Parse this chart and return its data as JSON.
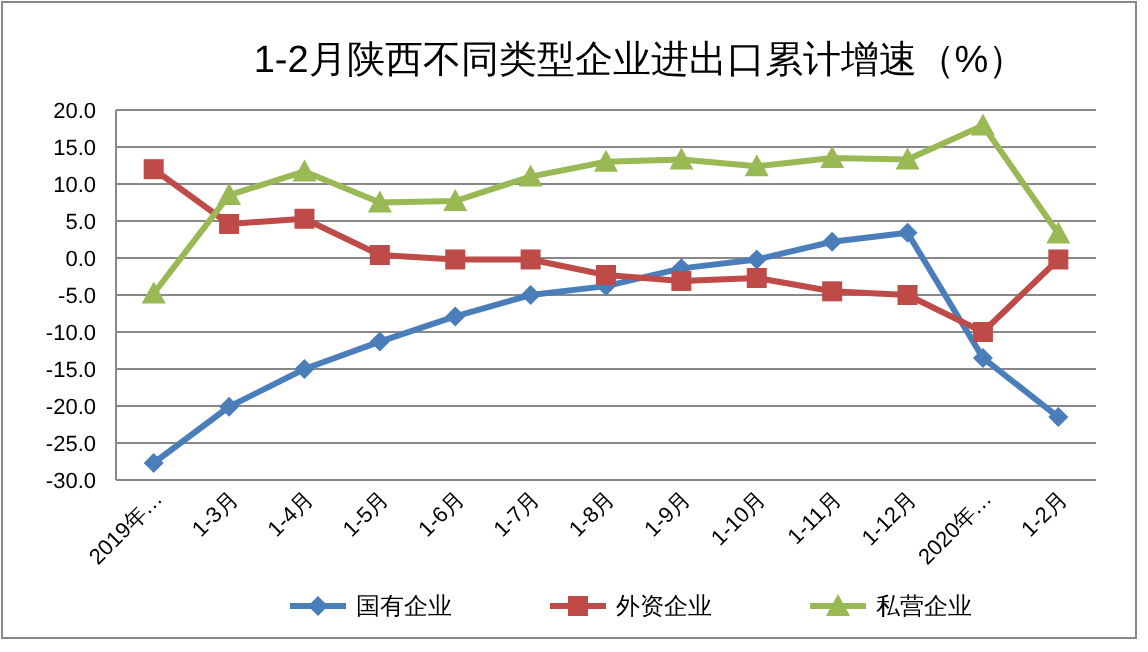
{
  "chart_data": {
    "type": "line",
    "title": "1-2月陕西不同类型企业进出口累计增速（%）",
    "categories": [
      "2019年…",
      "1-3月",
      "1-4月",
      "1-5月",
      "1-6月",
      "1-7月",
      "1-8月",
      "1-9月",
      "1-10月",
      "1-11月",
      "1-12月",
      "2020年…",
      "1-2月"
    ],
    "series": [
      {
        "name": "国有企业",
        "color": "#4a7ebb",
        "marker": "diamond",
        "values": [
          -27.7,
          -20.1,
          -15.0,
          -11.3,
          -7.9,
          -5.0,
          -3.8,
          -1.4,
          -0.2,
          2.2,
          3.4,
          -13.5,
          -21.5
        ]
      },
      {
        "name": "外资企业",
        "color": "#be4b48",
        "marker": "square",
        "values": [
          12.0,
          4.6,
          5.3,
          0.4,
          -0.2,
          -0.2,
          -2.3,
          -3.1,
          -2.7,
          -4.5,
          -5.0,
          -10.0,
          -0.2
        ]
      },
      {
        "name": "私营企业",
        "color": "#98b954",
        "marker": "triangle",
        "values": [
          -4.8,
          8.5,
          11.7,
          7.5,
          7.7,
          11.0,
          13.0,
          13.3,
          12.4,
          13.5,
          13.3,
          17.9,
          3.3
        ]
      }
    ],
    "ylim": [
      -30,
      20
    ],
    "yticks": [
      {
        "value": -30,
        "label": "-30.0"
      },
      {
        "value": -25,
        "label": "-25.0"
      },
      {
        "value": -20,
        "label": "-20.0"
      },
      {
        "value": -15,
        "label": "-15.0"
      },
      {
        "value": -10,
        "label": "-10.0"
      },
      {
        "value": -5,
        "label": "-5.0"
      },
      {
        "value": 0,
        "label": "0.0"
      },
      {
        "value": 5,
        "label": "5.0"
      },
      {
        "value": 10,
        "label": "10.0"
      },
      {
        "value": 15,
        "label": "15.0"
      },
      {
        "value": 20,
        "label": "20.0"
      }
    ],
    "grid": "y",
    "legend": "bottom"
  }
}
